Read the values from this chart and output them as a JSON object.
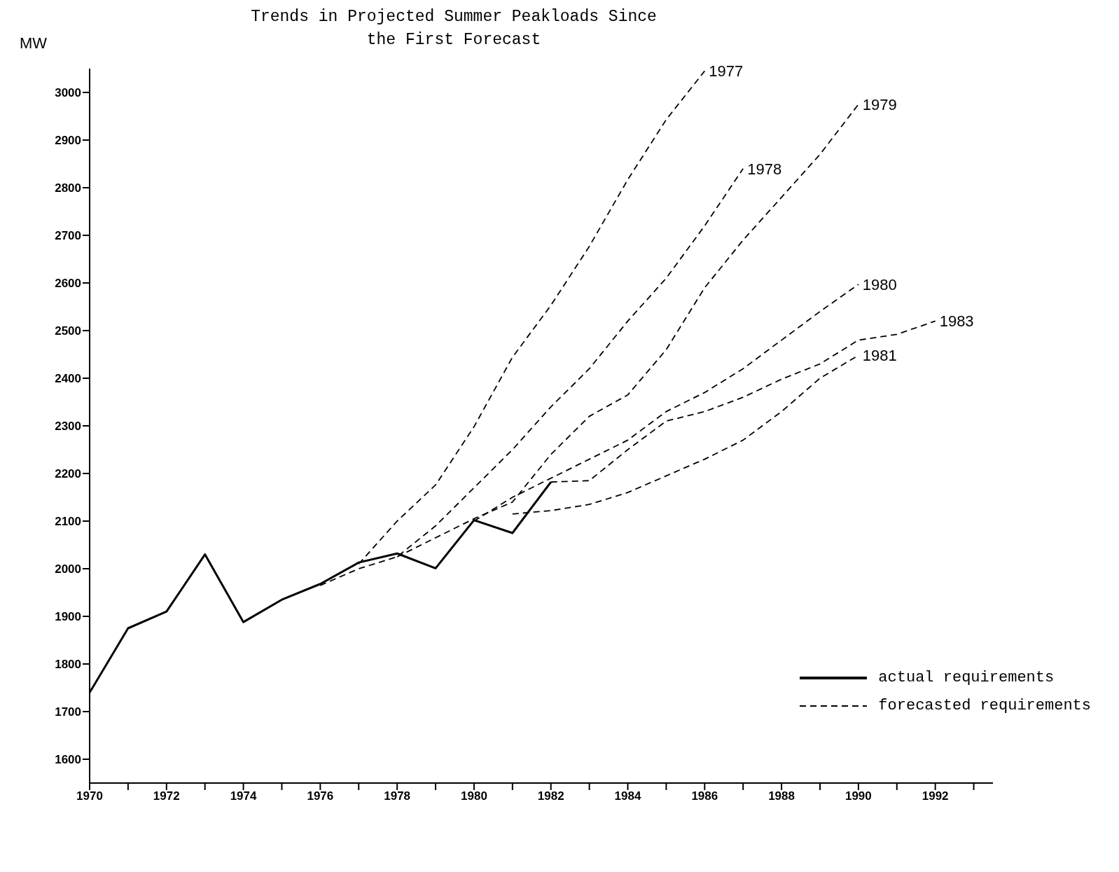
{
  "chart_data": {
    "type": "line",
    "title": "Trends in Projected Summer Peakloads Since\nthe First Forecast",
    "ylabel": "MW",
    "marker": "none",
    "legend": "right",
    "annotations": [
      "forecasted requirements"
    ],
    "xlim": [
      1970,
      1993.5
    ],
    "ylim": [
      1550,
      3050
    ],
    "xticks": [
      1970,
      {
        "value": 1971,
        "label": null
      },
      1972,
      {
        "value": 1973,
        "label": null
      },
      1974,
      {
        "value": 1975,
        "label": null
      },
      1976,
      {
        "value": 1977,
        "label": null
      },
      1978,
      {
        "value": 1979,
        "label": null
      },
      1980,
      {
        "value": 1981,
        "label": null
      },
      1982,
      {
        "value": 1983,
        "label": null
      },
      1984,
      {
        "value": 1985,
        "label": null
      },
      1986,
      {
        "value": 1987,
        "label": null
      },
      1988,
      {
        "value": 1989,
        "label": null
      },
      1990,
      {
        "value": 1991,
        "label": null
      },
      1992,
      {
        "value": 1993,
        "label": null
      }
    ],
    "yticks": [
      1600,
      1700,
      1800,
      1900,
      2000,
      2100,
      2200,
      2300,
      2400,
      2500,
      2600,
      2700,
      2800,
      2900,
      3000
    ],
    "series": [
      {
        "name": "actual requirements",
        "color": "#000000",
        "line_style": "solid",
        "x": [
          1970,
          1971,
          1972,
          1973,
          1974,
          1975,
          1976,
          1977,
          1978,
          1979,
          1980,
          1981,
          1982
        ],
        "values": [
          1740,
          1875,
          1910,
          2030,
          1888,
          1935,
          1968,
          2013,
          2032,
          2001,
          2102,
          2075,
          2182
        ]
      },
      {
        "name": "1977",
        "color": "#000000",
        "line_style": "dashed",
        "x": [
          1977,
          1978,
          1979,
          1980,
          1981,
          1982,
          1983,
          1984,
          1985,
          1986
        ],
        "values": [
          2010,
          2100,
          2176,
          2298,
          2444,
          2553,
          2677,
          2817,
          2943,
          3045
        ]
      },
      {
        "name": "1978",
        "color": "#000000",
        "line_style": "dashed",
        "x": [
          1976,
          1977,
          1978,
          1979,
          1980,
          1981,
          1982,
          1983,
          1984,
          1985,
          1986,
          1987
        ],
        "values": [
          1965,
          2000,
          2025,
          2090,
          2170,
          2250,
          2340,
          2420,
          2520,
          2610,
          2720,
          2840
        ]
      },
      {
        "name": "1979",
        "color": "#000000",
        "line_style": "dashed",
        "x": [
          1978,
          1979,
          1980,
          1981,
          1982,
          1983,
          1984,
          1985,
          1986,
          1987,
          1988,
          1989,
          1990
        ],
        "values": [
          2025,
          2065,
          2105,
          2140,
          2240,
          2320,
          2365,
          2460,
          2590,
          2690,
          2780,
          2870,
          2975
        ]
      },
      {
        "name": "1980",
        "color": "#000000",
        "line_style": "dashed",
        "x": [
          1980,
          1981,
          1982,
          1983,
          1984,
          1985,
          1986,
          1987,
          1988,
          1989,
          1990
        ],
        "values": [
          2100,
          2150,
          2190,
          2230,
          2270,
          2330,
          2370,
          2420,
          2480,
          2540,
          2597
        ]
      },
      {
        "name": "1981",
        "color": "#000000",
        "line_style": "dashed",
        "x": [
          1981,
          1982,
          1983,
          1984,
          1985,
          1986,
          1987,
          1988,
          1989,
          1990
        ],
        "values": [
          2115,
          2122,
          2135,
          2160,
          2195,
          2230,
          2270,
          2330,
          2400,
          2448
        ]
      },
      {
        "name": "1983",
        "color": "#000000",
        "line_style": "dashed",
        "x": [
          1982,
          1983,
          1984,
          1985,
          1986,
          1987,
          1988,
          1989,
          1990,
          1991,
          1992
        ],
        "values": [
          2182,
          2185,
          2250,
          2310,
          2330,
          2360,
          2398,
          2430,
          2480,
          2492,
          2520
        ]
      }
    ]
  }
}
